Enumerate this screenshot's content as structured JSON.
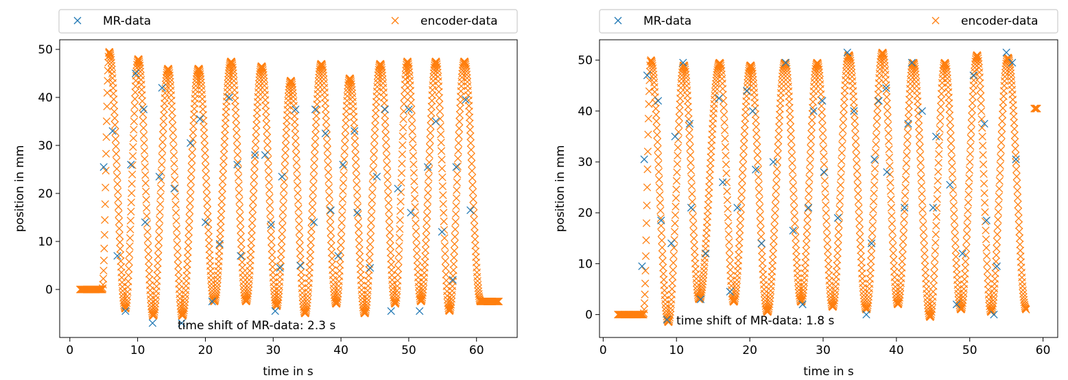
{
  "colors": {
    "mr": "#1f77b4",
    "encoder": "#ff7f0e"
  },
  "chart_data": [
    {
      "type": "scatter",
      "xlabel": "time in s",
      "ylabel": "position in mm",
      "annotation": "time shift of MR-data: 2.3 s",
      "legend_placement": "top (outside, full width)",
      "legend": [
        "MR-data",
        "encoder-data"
      ],
      "xlim": [
        -1.5,
        66
      ],
      "ylim": [
        -10,
        52
      ],
      "xticks": [
        0,
        10,
        20,
        30,
        40,
        50,
        60
      ],
      "yticks": [
        0,
        10,
        20,
        30,
        40,
        50
      ],
      "grid": false,
      "encoder_waveform": {
        "hold_start": {
          "x": [
            1.5,
            4.8
          ],
          "y": 0
        },
        "hold_end": {
          "x": [
            60.6,
            63.3
          ],
          "y": -2.5
        },
        "turns": [
          {
            "x": 5.8,
            "y": 49.5
          },
          {
            "x": 8.2,
            "y": -4
          },
          {
            "x": 10.1,
            "y": 48
          },
          {
            "x": 12.3,
            "y": -5.5
          },
          {
            "x": 14.5,
            "y": 46
          },
          {
            "x": 16.6,
            "y": -5.5
          },
          {
            "x": 19.0,
            "y": 46
          },
          {
            "x": 21.3,
            "y": -2.5
          },
          {
            "x": 23.8,
            "y": 47.5
          },
          {
            "x": 26.0,
            "y": -2.5
          },
          {
            "x": 28.3,
            "y": 46.5
          },
          {
            "x": 30.5,
            "y": -3.5
          },
          {
            "x": 32.6,
            "y": 43.5
          },
          {
            "x": 34.7,
            "y": -5
          },
          {
            "x": 37.1,
            "y": 47
          },
          {
            "x": 39.3,
            "y": -3
          },
          {
            "x": 41.3,
            "y": 44
          },
          {
            "x": 43.5,
            "y": -5
          },
          {
            "x": 45.8,
            "y": 47
          },
          {
            "x": 48.0,
            "y": -3
          },
          {
            "x": 49.8,
            "y": 47.5
          },
          {
            "x": 51.8,
            "y": -2.5
          },
          {
            "x": 54.0,
            "y": 47.5
          },
          {
            "x": 56.0,
            "y": -4.5
          },
          {
            "x": 58.2,
            "y": 47.5
          },
          {
            "x": 60.6,
            "y": -2.5
          }
        ]
      },
      "mr_points": [
        {
          "x": 5.0,
          "y": 25.5
        },
        {
          "x": 6.3,
          "y": 33
        },
        {
          "x": 7.0,
          "y": 7
        },
        {
          "x": 8.2,
          "y": -4.5
        },
        {
          "x": 9.0,
          "y": 26
        },
        {
          "x": 9.7,
          "y": 45
        },
        {
          "x": 10.9,
          "y": 37.5
        },
        {
          "x": 11.1,
          "y": 14
        },
        {
          "x": 12.2,
          "y": -7
        },
        {
          "x": 13.2,
          "y": 23.5
        },
        {
          "x": 13.6,
          "y": 42
        },
        {
          "x": 15.4,
          "y": 21
        },
        {
          "x": 16.5,
          "y": -7
        },
        {
          "x": 17.8,
          "y": 30.5
        },
        {
          "x": 19.2,
          "y": 35.5
        },
        {
          "x": 20.0,
          "y": 14
        },
        {
          "x": 21.0,
          "y": -2.5
        },
        {
          "x": 22.1,
          "y": 9.5
        },
        {
          "x": 23.5,
          "y": 40
        },
        {
          "x": 24.7,
          "y": 26
        },
        {
          "x": 25.2,
          "y": 7
        },
        {
          "x": 27.3,
          "y": 28
        },
        {
          "x": 28.8,
          "y": 28
        },
        {
          "x": 29.7,
          "y": 13.5
        },
        {
          "x": 30.3,
          "y": -4.5
        },
        {
          "x": 31.0,
          "y": 4.5
        },
        {
          "x": 31.3,
          "y": 23.5
        },
        {
          "x": 33.3,
          "y": 37.5
        },
        {
          "x": 34.0,
          "y": 5
        },
        {
          "x": 36.0,
          "y": 14
        },
        {
          "x": 36.2,
          "y": 37.5
        },
        {
          "x": 37.7,
          "y": 32.5
        },
        {
          "x": 38.5,
          "y": 16.5
        },
        {
          "x": 39.6,
          "y": 7
        },
        {
          "x": 40.3,
          "y": 26
        },
        {
          "x": 42.0,
          "y": 33
        },
        {
          "x": 42.4,
          "y": 16
        },
        {
          "x": 44.3,
          "y": 4.5
        },
        {
          "x": 45.3,
          "y": 23.5
        },
        {
          "x": 46.5,
          "y": 37.5
        },
        {
          "x": 47.4,
          "y": -4.5
        },
        {
          "x": 48.4,
          "y": 21
        },
        {
          "x": 50.0,
          "y": 37.5
        },
        {
          "x": 50.3,
          "y": 16
        },
        {
          "x": 51.6,
          "y": -4.5
        },
        {
          "x": 52.8,
          "y": 25.5
        },
        {
          "x": 54.0,
          "y": 35
        },
        {
          "x": 54.9,
          "y": 12
        },
        {
          "x": 56.5,
          "y": 2
        },
        {
          "x": 57.0,
          "y": 25.5
        },
        {
          "x": 58.4,
          "y": 39.5
        },
        {
          "x": 59.1,
          "y": 16.5
        }
      ]
    },
    {
      "type": "scatter",
      "xlabel": "time in s",
      "ylabel": "position in mm",
      "annotation": "time shift of MR-data: 1.8 s",
      "legend_placement": "top (outside, full width)",
      "legend": [
        "MR-data",
        "encoder-data"
      ],
      "xlim": [
        -0.5,
        62
      ],
      "ylim": [
        -4.5,
        54
      ],
      "xticks": [
        0,
        10,
        20,
        30,
        40,
        50,
        60
      ],
      "yticks": [
        0,
        10,
        20,
        30,
        40,
        50
      ],
      "grid": false,
      "encoder_waveform": {
        "hold_start": {
          "x": [
            2.0,
            5.5
          ],
          "y": 0
        },
        "hold_end": {
          "x": [
            58.8,
            59.2
          ],
          "y": 40.5
        },
        "turns": [
          {
            "x": 6.5,
            "y": 50
          },
          {
            "x": 8.9,
            "y": -1.5
          },
          {
            "x": 11.0,
            "y": 49
          },
          {
            "x": 13.1,
            "y": 3
          },
          {
            "x": 15.9,
            "y": 49.5
          },
          {
            "x": 17.8,
            "y": 2.5
          },
          {
            "x": 20.1,
            "y": 49
          },
          {
            "x": 22.4,
            "y": 0.5
          },
          {
            "x": 24.8,
            "y": 49.5
          },
          {
            "x": 27.0,
            "y": 2.5
          },
          {
            "x": 29.2,
            "y": 49.5
          },
          {
            "x": 31.3,
            "y": 1.5
          },
          {
            "x": 33.5,
            "y": 51
          },
          {
            "x": 35.9,
            "y": 1
          },
          {
            "x": 38.1,
            "y": 51.5
          },
          {
            "x": 40.2,
            "y": 2
          },
          {
            "x": 42.3,
            "y": 49.5
          },
          {
            "x": 44.6,
            "y": -0.5
          },
          {
            "x": 46.6,
            "y": 49.5
          },
          {
            "x": 48.8,
            "y": 1
          },
          {
            "x": 51.0,
            "y": 51
          },
          {
            "x": 52.9,
            "y": 0.5
          },
          {
            "x": 55.2,
            "y": 50.5
          },
          {
            "x": 57.7,
            "y": 1
          }
        ]
      },
      "mr_points": [
        {
          "x": 5.3,
          "y": 9.5
        },
        {
          "x": 5.6,
          "y": 30.5
        },
        {
          "x": 6.0,
          "y": 47
        },
        {
          "x": 7.5,
          "y": 42
        },
        {
          "x": 7.9,
          "y": 18.5
        },
        {
          "x": 8.7,
          "y": -1
        },
        {
          "x": 9.3,
          "y": 14
        },
        {
          "x": 9.8,
          "y": 35
        },
        {
          "x": 10.9,
          "y": 49.5
        },
        {
          "x": 11.8,
          "y": 37.5
        },
        {
          "x": 12.0,
          "y": 21
        },
        {
          "x": 13.3,
          "y": 3
        },
        {
          "x": 14.0,
          "y": 12
        },
        {
          "x": 15.8,
          "y": 42.5
        },
        {
          "x": 16.3,
          "y": 26
        },
        {
          "x": 17.3,
          "y": 4.5
        },
        {
          "x": 18.3,
          "y": 21
        },
        {
          "x": 19.6,
          "y": 44
        },
        {
          "x": 20.4,
          "y": 40
        },
        {
          "x": 20.8,
          "y": 28.5
        },
        {
          "x": 21.6,
          "y": 14
        },
        {
          "x": 23.2,
          "y": 30
        },
        {
          "x": 24.9,
          "y": 49.5
        },
        {
          "x": 25.9,
          "y": 16.5
        },
        {
          "x": 27.2,
          "y": 2
        },
        {
          "x": 28.0,
          "y": 21
        },
        {
          "x": 28.7,
          "y": 40
        },
        {
          "x": 29.9,
          "y": 42
        },
        {
          "x": 30.1,
          "y": 28
        },
        {
          "x": 32.0,
          "y": 19
        },
        {
          "x": 33.3,
          "y": 51.5
        },
        {
          "x": 34.2,
          "y": 40
        },
        {
          "x": 35.9,
          "y": 0
        },
        {
          "x": 36.6,
          "y": 14
        },
        {
          "x": 37.0,
          "y": 30.5
        },
        {
          "x": 37.6,
          "y": 42
        },
        {
          "x": 38.6,
          "y": 44.5
        },
        {
          "x": 38.7,
          "y": 28
        },
        {
          "x": 41.1,
          "y": 21
        },
        {
          "x": 41.6,
          "y": 37.5
        },
        {
          "x": 42.1,
          "y": 49.5
        },
        {
          "x": 43.5,
          "y": 40
        },
        {
          "x": 45.0,
          "y": 21
        },
        {
          "x": 45.4,
          "y": 35
        },
        {
          "x": 47.3,
          "y": 25.5
        },
        {
          "x": 48.2,
          "y": 2
        },
        {
          "x": 49.0,
          "y": 12
        },
        {
          "x": 50.5,
          "y": 47
        },
        {
          "x": 52.0,
          "y": 37.5
        },
        {
          "x": 52.3,
          "y": 18.5
        },
        {
          "x": 53.3,
          "y": 0
        },
        {
          "x": 53.7,
          "y": 9.5
        },
        {
          "x": 55.0,
          "y": 51.5
        },
        {
          "x": 55.8,
          "y": 49.5
        },
        {
          "x": 56.3,
          "y": 30.5
        }
      ]
    }
  ]
}
